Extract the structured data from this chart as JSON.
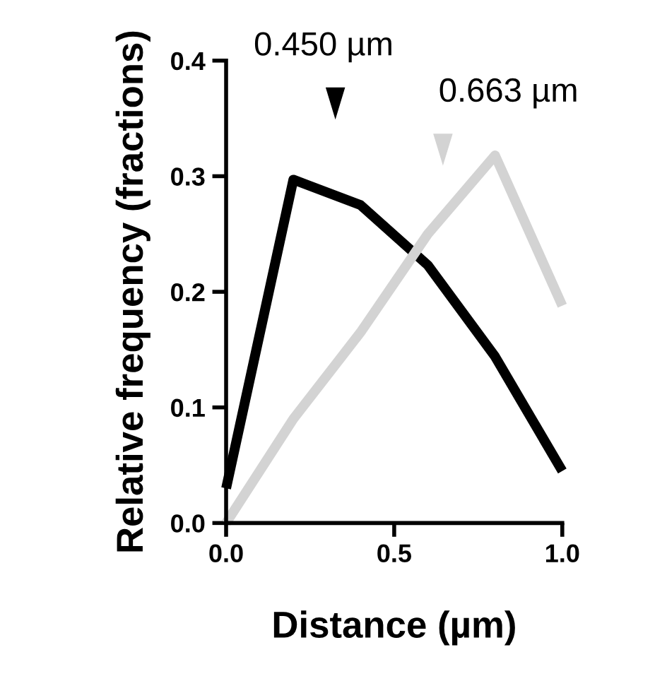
{
  "chart_data": {
    "type": "line",
    "xlabel": "Distance (µm)",
    "ylabel": "Relative frequency (fractions)",
    "x": [
      0,
      0.2,
      0.4,
      0.6,
      0.8,
      1.0
    ],
    "series": [
      {
        "color": "#000000",
        "values": [
          0.03,
          0.297,
          0.275,
          0.223,
          0.144,
          0.045
        ]
      },
      {
        "color": "#d3d3d3",
        "values": [
          0.0,
          0.09,
          0.165,
          0.25,
          0.318,
          0.188
        ]
      }
    ],
    "annotations": [
      "0.450 µm",
      "0.663 µm"
    ],
    "xlim": [
      0,
      1
    ],
    "ylim": [
      0,
      0.4
    ],
    "xticks": [
      {
        "value": 0,
        "label": "0.0"
      },
      0.5,
      {
        "value": 1,
        "label": "1.0"
      }
    ],
    "yticks": [
      {
        "value": 0,
        "label": "0.0"
      },
      0.1,
      0.2,
      0.3,
      0.4
    ],
    "grid": false,
    "legend": false,
    "marker": "none",
    "line_style": "solid"
  }
}
